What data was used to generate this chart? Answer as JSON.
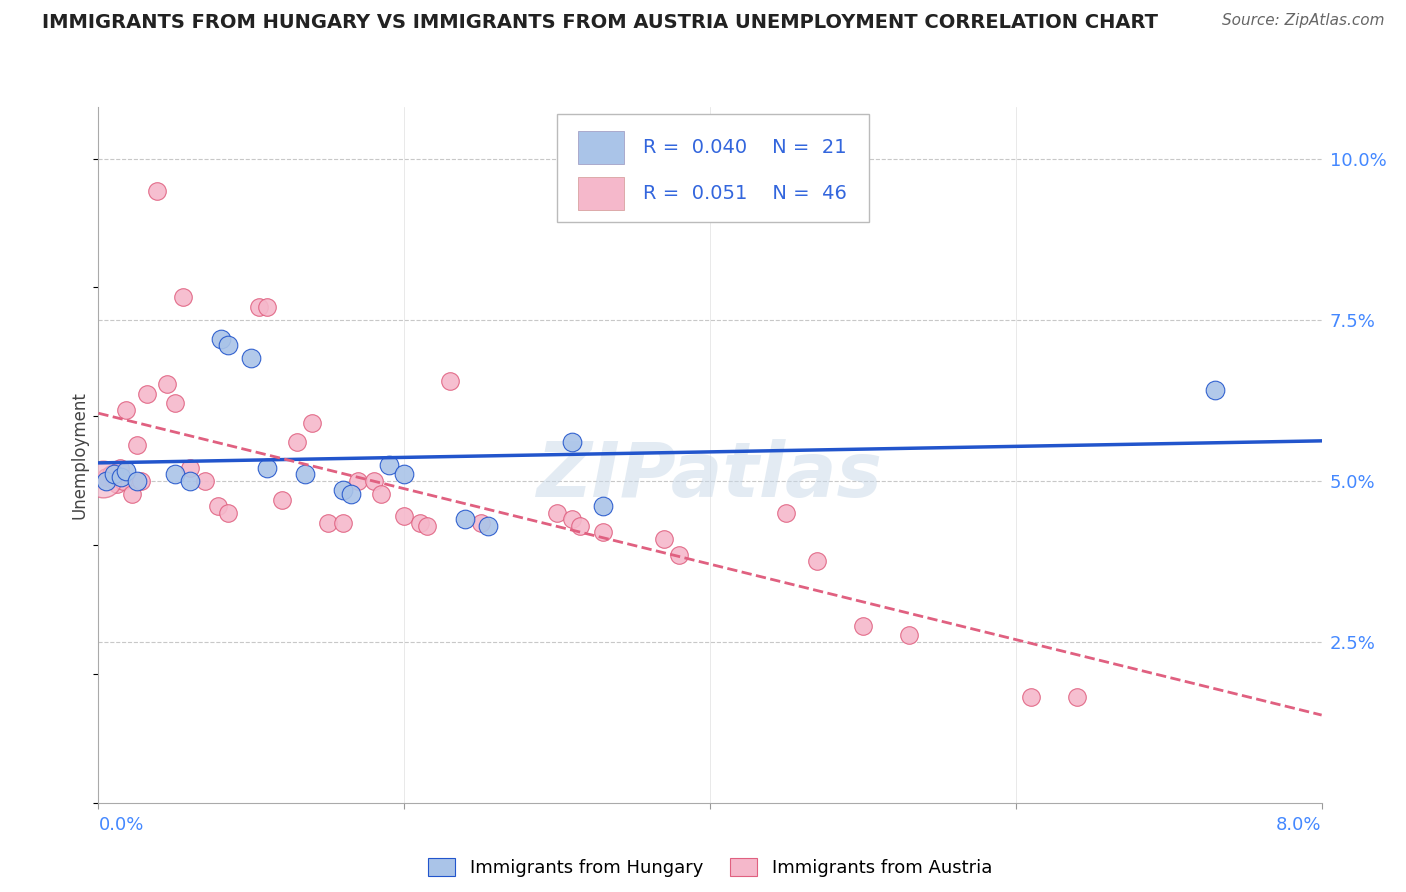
{
  "title": "IMMIGRANTS FROM HUNGARY VS IMMIGRANTS FROM AUSTRIA UNEMPLOYMENT CORRELATION CHART",
  "source": "Source: ZipAtlas.com",
  "ylabel": "Unemployment",
  "right_yticks": [
    "2.5%",
    "5.0%",
    "7.5%",
    "10.0%"
  ],
  "right_ytick_vals": [
    2.5,
    5.0,
    7.5,
    10.0
  ],
  "xmin": 0.0,
  "xmax": 8.0,
  "ymin": 0.0,
  "ymax": 10.8,
  "hungary_color": "#aac4e8",
  "austria_color": "#f5b8cb",
  "hungary_line_color": "#2255cc",
  "austria_line_color": "#e06080",
  "watermark": "ZIPatlas",
  "hungary_points": [
    [
      0.05,
      5.0
    ],
    [
      0.1,
      5.1
    ],
    [
      0.15,
      5.05
    ],
    [
      0.18,
      5.15
    ],
    [
      0.25,
      5.0
    ],
    [
      0.5,
      5.1
    ],
    [
      0.6,
      5.0
    ],
    [
      0.8,
      7.2
    ],
    [
      0.85,
      7.1
    ],
    [
      1.0,
      6.9
    ],
    [
      1.1,
      5.2
    ],
    [
      1.35,
      5.1
    ],
    [
      1.6,
      4.85
    ],
    [
      1.65,
      4.8
    ],
    [
      1.9,
      5.25
    ],
    [
      2.0,
      5.1
    ],
    [
      2.4,
      4.4
    ],
    [
      2.55,
      4.3
    ],
    [
      3.1,
      5.6
    ],
    [
      3.3,
      4.6
    ],
    [
      7.3,
      6.4
    ]
  ],
  "austria_points": [
    [
      0.05,
      5.05
    ],
    [
      0.08,
      5.1
    ],
    [
      0.1,
      5.0
    ],
    [
      0.12,
      4.95
    ],
    [
      0.14,
      5.2
    ],
    [
      0.16,
      5.0
    ],
    [
      0.18,
      6.1
    ],
    [
      0.22,
      4.8
    ],
    [
      0.25,
      5.55
    ],
    [
      0.28,
      5.0
    ],
    [
      0.32,
      6.35
    ],
    [
      0.38,
      9.5
    ],
    [
      0.45,
      6.5
    ],
    [
      0.5,
      6.2
    ],
    [
      0.55,
      7.85
    ],
    [
      0.6,
      5.2
    ],
    [
      0.7,
      5.0
    ],
    [
      0.78,
      4.6
    ],
    [
      0.85,
      4.5
    ],
    [
      1.05,
      7.7
    ],
    [
      1.1,
      7.7
    ],
    [
      1.2,
      4.7
    ],
    [
      1.3,
      5.6
    ],
    [
      1.4,
      5.9
    ],
    [
      1.5,
      4.35
    ],
    [
      1.6,
      4.35
    ],
    [
      1.7,
      5.0
    ],
    [
      1.8,
      5.0
    ],
    [
      1.85,
      4.8
    ],
    [
      2.0,
      4.45
    ],
    [
      2.1,
      4.35
    ],
    [
      2.15,
      4.3
    ],
    [
      2.3,
      6.55
    ],
    [
      2.5,
      4.35
    ],
    [
      3.0,
      4.5
    ],
    [
      3.1,
      4.4
    ],
    [
      3.15,
      4.3
    ],
    [
      3.3,
      4.2
    ],
    [
      3.7,
      4.1
    ],
    [
      3.8,
      3.85
    ],
    [
      4.5,
      4.5
    ],
    [
      4.7,
      3.75
    ],
    [
      5.0,
      2.75
    ],
    [
      5.3,
      2.6
    ],
    [
      6.1,
      1.65
    ],
    [
      6.4,
      1.65
    ]
  ]
}
